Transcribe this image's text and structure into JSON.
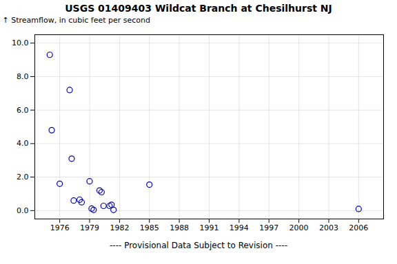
{
  "chart_data": {
    "type": "scatter",
    "title": "USGS 01409403 Wildcat Branch at Chesilhurst NJ",
    "ylabel": "Streamflow, in cubic feet per second",
    "footnote": "---- Provisional Data Subject to Revision ----",
    "x": [
      1975.0,
      1975.2,
      1976.0,
      1977.0,
      1977.2,
      1977.4,
      1978.0,
      1978.2,
      1979.0,
      1979.2,
      1979.4,
      1980.0,
      1980.2,
      1980.4,
      1981.0,
      1981.2,
      1981.4,
      1985.0,
      2006.0
    ],
    "values": [
      9.3,
      4.8,
      1.6,
      7.2,
      3.1,
      0.6,
      0.65,
      0.5,
      1.75,
      0.12,
      0.04,
      1.2,
      1.1,
      0.28,
      0.28,
      0.35,
      0.04,
      1.55,
      0.1
    ],
    "color": "#0000bb",
    "marker": "circle",
    "xlim": [
      1973.5,
      2008.5
    ],
    "xticks": [
      1976,
      1979,
      1982,
      1985,
      1988,
      1991,
      1994,
      1997,
      2000,
      2003,
      2006
    ],
    "ylim": [
      -0.5,
      10.5
    ],
    "yticks": [
      {
        "value": 0.0,
        "label": "0.0"
      },
      {
        "value": 2.0,
        "label": "2.0"
      },
      {
        "value": 4.0,
        "label": "4.0"
      },
      {
        "value": 6.0,
        "label": "6.0"
      },
      {
        "value": 8.0,
        "label": "8.0"
      },
      {
        "value": 10.0,
        "label": "10.0"
      }
    ],
    "grid": true
  }
}
